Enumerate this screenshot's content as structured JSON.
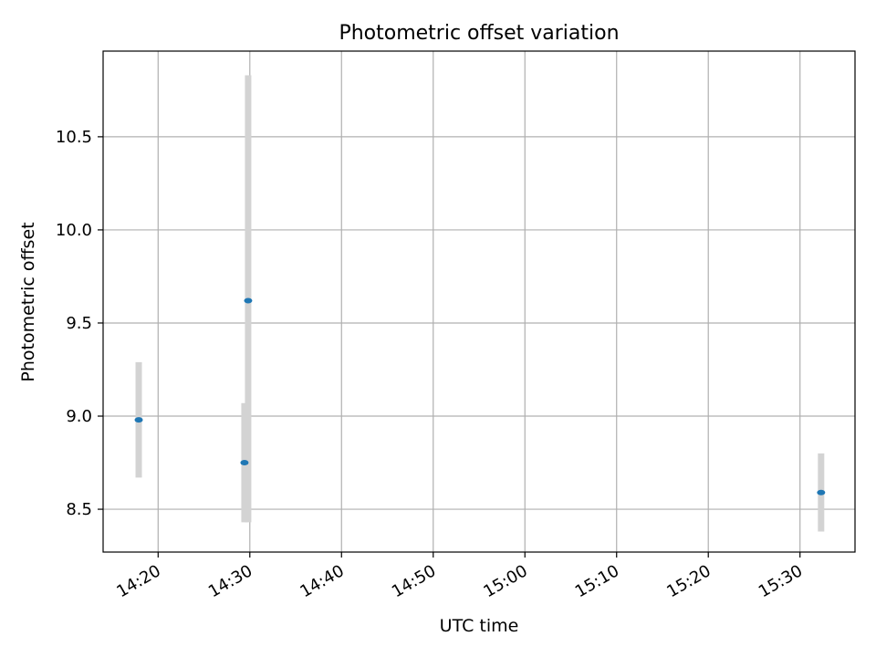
{
  "chart_data": {
    "type": "scatter",
    "title": "Photometric offset variation",
    "xlabel": "UTC time",
    "ylabel": "Photometric offset",
    "xlim": [
      "14:14",
      "15:36"
    ],
    "ylim": [
      8.27,
      10.96
    ],
    "x_ticks": [
      "14:20",
      "14:30",
      "14:40",
      "14:50",
      "15:00",
      "15:10",
      "15:20",
      "15:30"
    ],
    "y_ticks": [
      "8.5",
      "9.0",
      "9.5",
      "10.0",
      "10.5"
    ],
    "grid": true,
    "points": [
      {
        "x": "14:17:53",
        "y": 8.98,
        "yerr_low": 8.67,
        "yerr_high": 9.29
      },
      {
        "x": "14:29:25",
        "y": 8.75,
        "yerr_low": 8.43,
        "yerr_high": 9.07
      },
      {
        "x": "14:29:49",
        "y": 9.62,
        "yerr_low": 8.43,
        "yerr_high": 10.83
      },
      {
        "x": "15:32:18",
        "y": 8.59,
        "yerr_low": 8.38,
        "yerr_high": 8.8
      }
    ],
    "colors": {
      "marker": "#1f77b4",
      "errorbar": "#d3d3d3",
      "grid": "#b0b0b0"
    }
  }
}
